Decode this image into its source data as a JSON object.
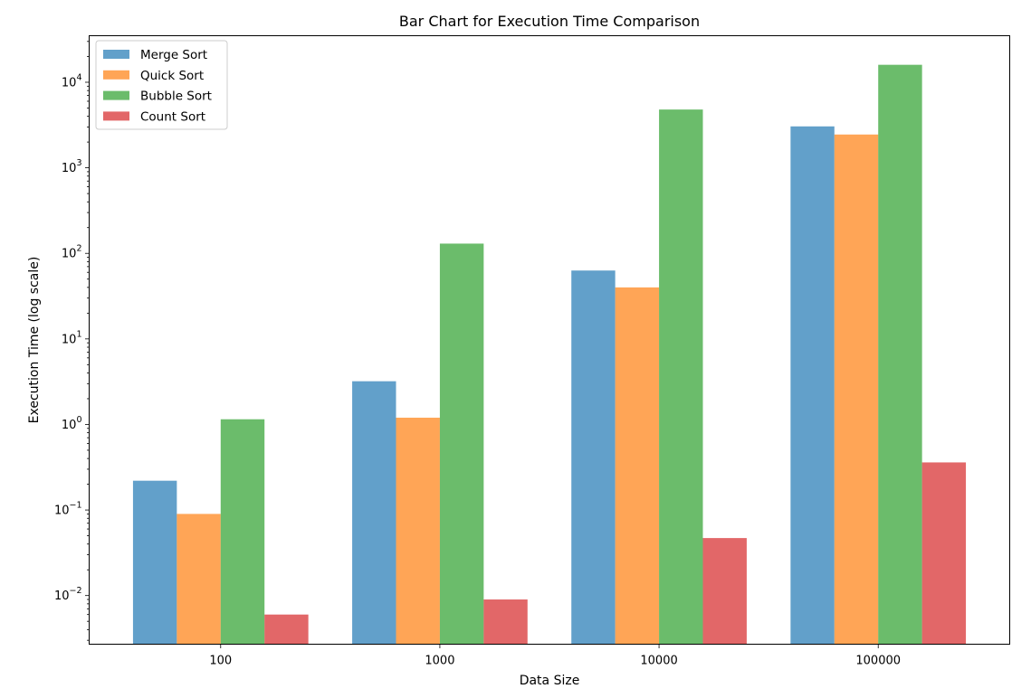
{
  "chart_data": {
    "type": "bar",
    "title": "Bar Chart for Execution Time Comparison",
    "xlabel": "Data Size",
    "ylabel": "Execution Time (log scale)",
    "yscale": "log",
    "ylim": [
      0.0027,
      35000
    ],
    "yticks": [
      {
        "value": 0.01,
        "base": "10",
        "exp": "−2"
      },
      {
        "value": 0.1,
        "base": "10",
        "exp": "−1"
      },
      {
        "value": 1,
        "base": "10",
        "exp": "0"
      },
      {
        "value": 10,
        "base": "10",
        "exp": "1"
      },
      {
        "value": 100,
        "base": "10",
        "exp": "2"
      },
      {
        "value": 1000,
        "base": "10",
        "exp": "3"
      },
      {
        "value": 10000,
        "base": "10",
        "exp": "4"
      }
    ],
    "categories": [
      "100",
      "1000",
      "10000",
      "100000"
    ],
    "series": [
      {
        "name": "Merge Sort",
        "color": "#1f77b4",
        "values": [
          0.22,
          3.2,
          63,
          3050
        ]
      },
      {
        "name": "Quick Sort",
        "color": "#ff7f0e",
        "values": [
          0.09,
          1.2,
          40,
          2450
        ]
      },
      {
        "name": "Bubble Sort",
        "color": "#2ca02c",
        "values": [
          1.15,
          130,
          4800,
          16000
        ]
      },
      {
        "name": "Count Sort",
        "color": "#d62728",
        "values": [
          0.006,
          0.009,
          0.047,
          0.36
        ]
      }
    ],
    "bar_alpha": 0.7,
    "grid": false,
    "legend_position": "upper-left"
  }
}
